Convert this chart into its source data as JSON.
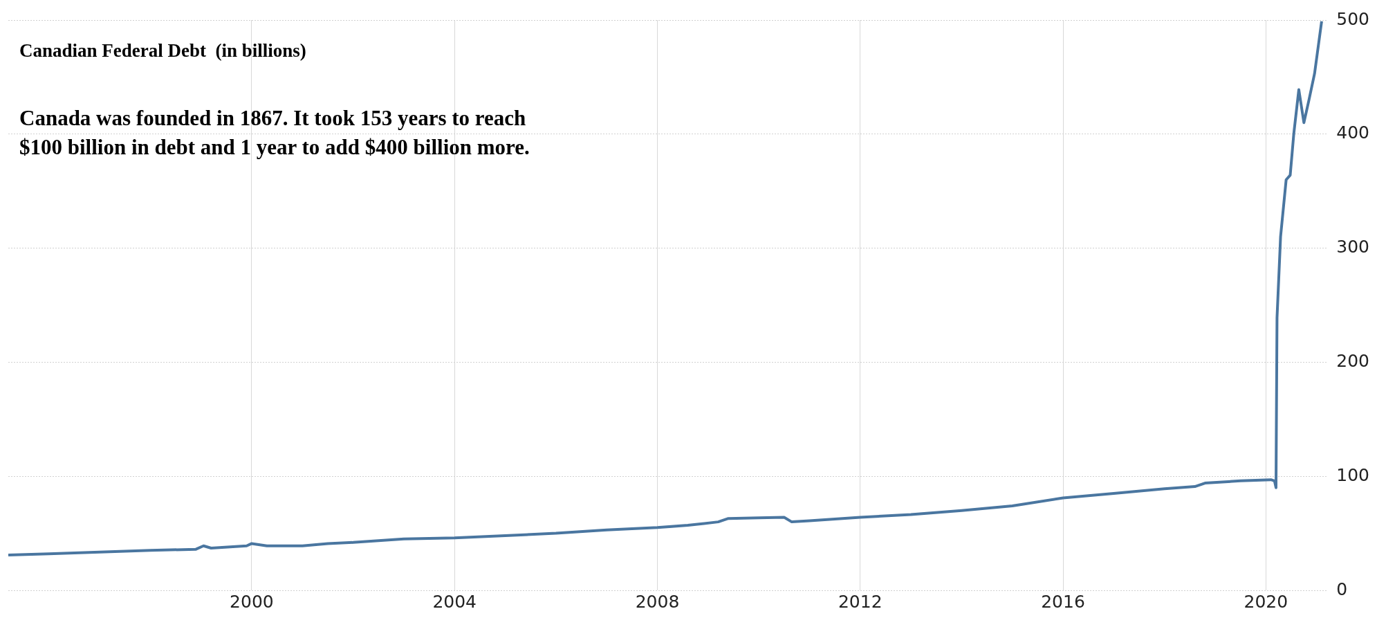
{
  "chart_data": {
    "type": "line",
    "title": "Canadian Federal Debt  (in billions)",
    "annotations": [
      "Canada was founded in 1867.  It took 153 years to reach $100 billion in debt and 1 year to add $400 billion more."
    ],
    "x": [
      1995.2,
      1996,
      1997,
      1998,
      1998.9,
      1999.05,
      1999.2,
      1999.9,
      2000,
      2000.3,
      2001,
      2001.5,
      2002,
      2003,
      2004,
      2005,
      2006,
      2007,
      2008,
      2008.6,
      2009.2,
      2009.4,
      2010,
      2010.5,
      2010.65,
      2011,
      2012,
      2013,
      2014,
      2015,
      2016,
      2017,
      2018,
      2018.6,
      2018.8,
      2019.5,
      2020.1,
      2020.17,
      2020.2,
      2020.22,
      2020.29,
      2020.4,
      2020.48,
      2020.55,
      2020.65,
      2020.75,
      2020.85,
      2020.96,
      2021.1
    ],
    "series": [
      {
        "color": "#4a76a0",
        "values": [
          31,
          32,
          33.5,
          35,
          36,
          39,
          37,
          39,
          41,
          39,
          39,
          41,
          42,
          45,
          46,
          48,
          50,
          53,
          55,
          57,
          60,
          63,
          63.5,
          64,
          60,
          61,
          64,
          66.5,
          70,
          74,
          81,
          85,
          89,
          91,
          94,
          96,
          97,
          96,
          90,
          239,
          310,
          360,
          364,
          400,
          439,
          410,
          430,
          453,
          499
        ]
      }
    ],
    "xlim": [
      1995.2,
      2021.2
    ],
    "xticks": [
      2000,
      2004,
      2008,
      2012,
      2016,
      2020
    ],
    "ylim": [
      0,
      500
    ],
    "yticks": [
      0,
      100,
      200,
      300,
      400,
      500
    ],
    "grid": true,
    "legend": false,
    "marker": "none",
    "line_style": "solid"
  }
}
